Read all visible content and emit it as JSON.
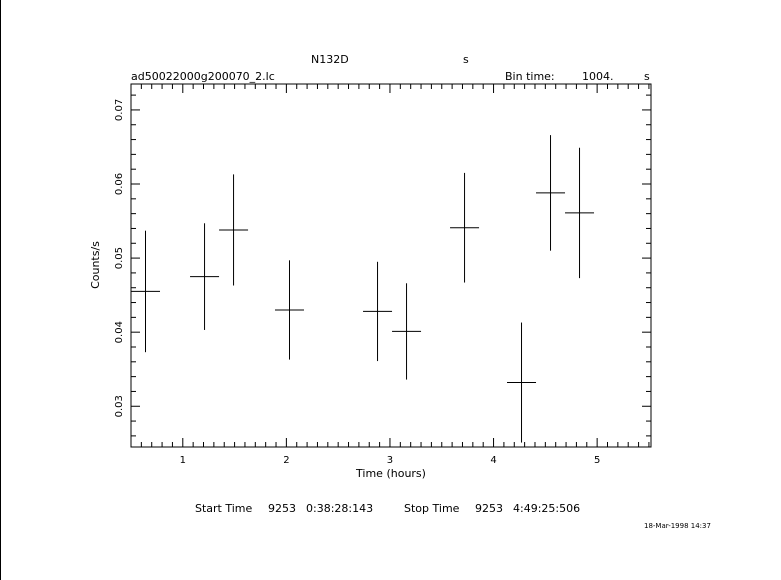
{
  "header": {
    "object": "N132D",
    "units": "s",
    "filename": "ad50022000g200070_2.lc",
    "bin_label": "Bin time:",
    "bin_value": "1004.",
    "bin_unit": "s"
  },
  "footer": {
    "start_label": "Start Time",
    "start_day": "9253",
    "start_time": "0:38:28:143",
    "stop_label": "Stop Time",
    "stop_day": "9253",
    "stop_time": "4:49:25:506",
    "timestamp": "18-Mar-1998 14:37"
  },
  "chart_data": {
    "type": "scatter",
    "title": "N132D",
    "xlabel": "Time (hours)",
    "ylabel": "Counts/s",
    "xlim": [
      0.5,
      5.52
    ],
    "ylim": [
      0.0245,
      0.0735
    ],
    "x_ticks": [
      1,
      2,
      3,
      4,
      5
    ],
    "y_ticks": [
      0.03,
      0.04,
      0.05,
      0.06,
      0.07
    ],
    "x_tick_labels": [
      "1",
      "2",
      "3",
      "4",
      "5"
    ],
    "y_tick_labels": [
      "0.03",
      "0.04",
      "0.05",
      "0.06",
      "0.07"
    ],
    "grid": false,
    "points": [
      {
        "x": 0.64,
        "y": 0.0455,
        "xerr": 0.14,
        "yerr": 0.0082
      },
      {
        "x": 1.21,
        "y": 0.0475,
        "xerr": 0.14,
        "yerr": 0.0072
      },
      {
        "x": 1.49,
        "y": 0.0538,
        "xerr": 0.14,
        "yerr": 0.0075
      },
      {
        "x": 2.03,
        "y": 0.043,
        "xerr": 0.14,
        "yerr": 0.0067
      },
      {
        "x": 2.88,
        "y": 0.0428,
        "xerr": 0.14,
        "yerr": 0.0067
      },
      {
        "x": 3.16,
        "y": 0.0401,
        "xerr": 0.14,
        "yerr": 0.0065
      },
      {
        "x": 3.72,
        "y": 0.0541,
        "xerr": 0.14,
        "yerr": 0.0074
      },
      {
        "x": 4.27,
        "y": 0.0332,
        "xerr": 0.14,
        "yerr": 0.0081
      },
      {
        "x": 4.55,
        "y": 0.0588,
        "xerr": 0.14,
        "yerr": 0.0078
      },
      {
        "x": 4.83,
        "y": 0.0561,
        "xerr": 0.14,
        "yerr": 0.0088
      }
    ]
  }
}
